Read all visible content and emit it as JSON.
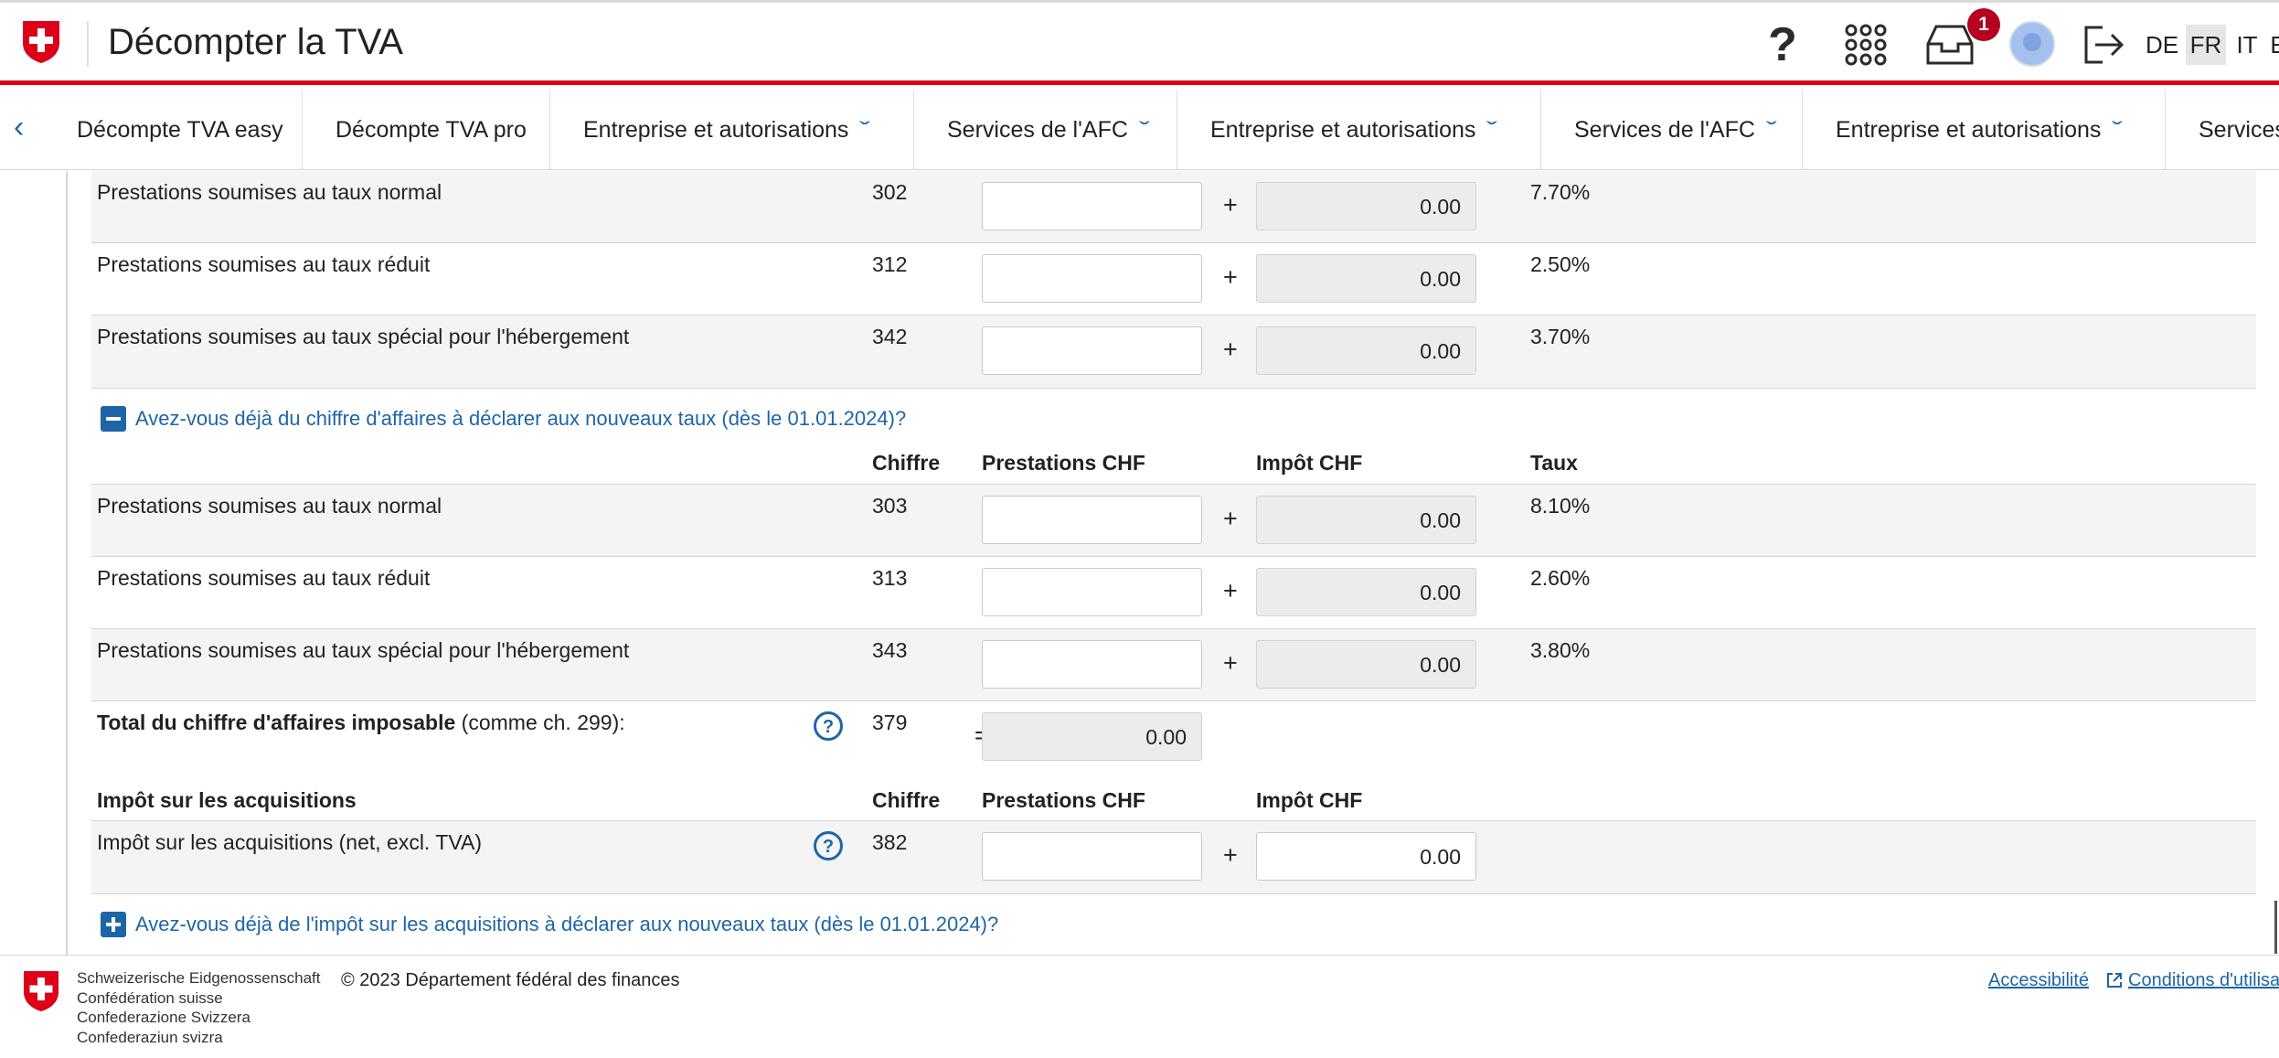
{
  "header": {
    "app_title": "Décompter la TVA",
    "notification_count": "1",
    "languages": [
      "DE",
      "FR",
      "IT",
      "E"
    ],
    "active_language": "FR",
    "brand_color": "#dc0018"
  },
  "nav": {
    "items": [
      {
        "label": "Décompte TVA easy"
      },
      {
        "label": "Décompte TVA pro"
      },
      {
        "label": "Entreprise et autorisations"
      },
      {
        "label": "Services de l'AFC"
      },
      {
        "label": "Entreprise et autorisations"
      },
      {
        "label": "Services de l'AFC"
      },
      {
        "label": "Entreprise et autorisations"
      },
      {
        "label": "Services"
      }
    ]
  },
  "old_rates": {
    "rows": [
      {
        "label": "Prestations soumises au taux normal",
        "code": "302",
        "tax": "0.00",
        "rate": "7.70%"
      },
      {
        "label": "Prestations soumises au taux réduit",
        "code": "312",
        "tax": "0.00",
        "rate": "2.50%"
      },
      {
        "label": "Prestations soumises au taux spécial pour l'hébergement",
        "code": "342",
        "tax": "0.00",
        "rate": "3.70%"
      }
    ]
  },
  "new_rates": {
    "toggle_label": "Avez-vous déjà du chiffre d'affaires à déclarer aux nouveaux taux (dès le 01.01.2024)?",
    "headers": {
      "code": "Chiffre",
      "services": "Prestations CHF",
      "tax": "Impôt CHF",
      "rate": "Taux"
    },
    "rows": [
      {
        "label": "Prestations soumises au taux normal",
        "code": "303",
        "tax": "0.00",
        "rate": "8.10%"
      },
      {
        "label": "Prestations soumises au taux réduit",
        "code": "313",
        "tax": "0.00",
        "rate": "2.60%"
      },
      {
        "label": "Prestations soumises au taux spécial pour l'hébergement",
        "code": "343",
        "tax": "0.00",
        "rate": "3.80%"
      }
    ]
  },
  "total": {
    "label_bold": "Total du chiffre d'affaires imposable",
    "label_rest": " (comme ch. 299):",
    "code": "379",
    "value": "0.00"
  },
  "acquisitions": {
    "title": "Impôt sur les acquisitions",
    "headers": {
      "code": "Chiffre",
      "services": "Prestations CHF",
      "tax": "Impôt CHF"
    },
    "row": {
      "label": "Impôt sur les acquisitions (net, excl. TVA)",
      "code": "382",
      "tax": "0.00"
    },
    "toggle_label": "Avez-vous déjà de l'impôt sur les acquisitions à déclarer aux nouveaux taux (dès le 01.01.2024)?"
  },
  "footer": {
    "names": [
      "Schweizerische Eidgenossenschaft",
      "Confédération suisse",
      "Confederazione Svizzera",
      "Confederaziun svizra"
    ],
    "copyright": "© 2023 Département fédéral des finances",
    "accessibility": "Accessibilité",
    "terms": "Conditions d'utilisation"
  }
}
